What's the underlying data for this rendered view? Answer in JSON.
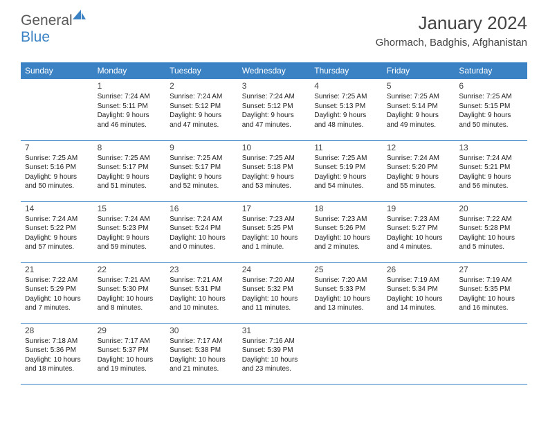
{
  "brand": {
    "part1": "General",
    "part2": "Blue"
  },
  "title": "January 2024",
  "location": "Ghormach, Badghis, Afghanistan",
  "colors": {
    "header_bg": "#3b82c4",
    "header_text": "#ffffff",
    "border": "#3b82c4",
    "text": "#222222",
    "title_text": "#444444",
    "logo_gray": "#5a5a5a",
    "logo_blue": "#3b82c4",
    "background": "#ffffff"
  },
  "typography": {
    "title_fontsize": 26,
    "location_fontsize": 15,
    "dayheader_fontsize": 12,
    "daynum_fontsize": 12,
    "info_fontsize": 10,
    "logo_fontsize": 21
  },
  "day_headers": [
    "Sunday",
    "Monday",
    "Tuesday",
    "Wednesday",
    "Thursday",
    "Friday",
    "Saturday"
  ],
  "weeks": [
    [
      null,
      {
        "n": "1",
        "sr": "Sunrise: 7:24 AM",
        "ss": "Sunset: 5:11 PM",
        "dl": "Daylight: 9 hours and 46 minutes."
      },
      {
        "n": "2",
        "sr": "Sunrise: 7:24 AM",
        "ss": "Sunset: 5:12 PM",
        "dl": "Daylight: 9 hours and 47 minutes."
      },
      {
        "n": "3",
        "sr": "Sunrise: 7:24 AM",
        "ss": "Sunset: 5:12 PM",
        "dl": "Daylight: 9 hours and 47 minutes."
      },
      {
        "n": "4",
        "sr": "Sunrise: 7:25 AM",
        "ss": "Sunset: 5:13 PM",
        "dl": "Daylight: 9 hours and 48 minutes."
      },
      {
        "n": "5",
        "sr": "Sunrise: 7:25 AM",
        "ss": "Sunset: 5:14 PM",
        "dl": "Daylight: 9 hours and 49 minutes."
      },
      {
        "n": "6",
        "sr": "Sunrise: 7:25 AM",
        "ss": "Sunset: 5:15 PM",
        "dl": "Daylight: 9 hours and 50 minutes."
      }
    ],
    [
      {
        "n": "7",
        "sr": "Sunrise: 7:25 AM",
        "ss": "Sunset: 5:16 PM",
        "dl": "Daylight: 9 hours and 50 minutes."
      },
      {
        "n": "8",
        "sr": "Sunrise: 7:25 AM",
        "ss": "Sunset: 5:17 PM",
        "dl": "Daylight: 9 hours and 51 minutes."
      },
      {
        "n": "9",
        "sr": "Sunrise: 7:25 AM",
        "ss": "Sunset: 5:17 PM",
        "dl": "Daylight: 9 hours and 52 minutes."
      },
      {
        "n": "10",
        "sr": "Sunrise: 7:25 AM",
        "ss": "Sunset: 5:18 PM",
        "dl": "Daylight: 9 hours and 53 minutes."
      },
      {
        "n": "11",
        "sr": "Sunrise: 7:25 AM",
        "ss": "Sunset: 5:19 PM",
        "dl": "Daylight: 9 hours and 54 minutes."
      },
      {
        "n": "12",
        "sr": "Sunrise: 7:24 AM",
        "ss": "Sunset: 5:20 PM",
        "dl": "Daylight: 9 hours and 55 minutes."
      },
      {
        "n": "13",
        "sr": "Sunrise: 7:24 AM",
        "ss": "Sunset: 5:21 PM",
        "dl": "Daylight: 9 hours and 56 minutes."
      }
    ],
    [
      {
        "n": "14",
        "sr": "Sunrise: 7:24 AM",
        "ss": "Sunset: 5:22 PM",
        "dl": "Daylight: 9 hours and 57 minutes."
      },
      {
        "n": "15",
        "sr": "Sunrise: 7:24 AM",
        "ss": "Sunset: 5:23 PM",
        "dl": "Daylight: 9 hours and 59 minutes."
      },
      {
        "n": "16",
        "sr": "Sunrise: 7:24 AM",
        "ss": "Sunset: 5:24 PM",
        "dl": "Daylight: 10 hours and 0 minutes."
      },
      {
        "n": "17",
        "sr": "Sunrise: 7:23 AM",
        "ss": "Sunset: 5:25 PM",
        "dl": "Daylight: 10 hours and 1 minute."
      },
      {
        "n": "18",
        "sr": "Sunrise: 7:23 AM",
        "ss": "Sunset: 5:26 PM",
        "dl": "Daylight: 10 hours and 2 minutes."
      },
      {
        "n": "19",
        "sr": "Sunrise: 7:23 AM",
        "ss": "Sunset: 5:27 PM",
        "dl": "Daylight: 10 hours and 4 minutes."
      },
      {
        "n": "20",
        "sr": "Sunrise: 7:22 AM",
        "ss": "Sunset: 5:28 PM",
        "dl": "Daylight: 10 hours and 5 minutes."
      }
    ],
    [
      {
        "n": "21",
        "sr": "Sunrise: 7:22 AM",
        "ss": "Sunset: 5:29 PM",
        "dl": "Daylight: 10 hours and 7 minutes."
      },
      {
        "n": "22",
        "sr": "Sunrise: 7:21 AM",
        "ss": "Sunset: 5:30 PM",
        "dl": "Daylight: 10 hours and 8 minutes."
      },
      {
        "n": "23",
        "sr": "Sunrise: 7:21 AM",
        "ss": "Sunset: 5:31 PM",
        "dl": "Daylight: 10 hours and 10 minutes."
      },
      {
        "n": "24",
        "sr": "Sunrise: 7:20 AM",
        "ss": "Sunset: 5:32 PM",
        "dl": "Daylight: 10 hours and 11 minutes."
      },
      {
        "n": "25",
        "sr": "Sunrise: 7:20 AM",
        "ss": "Sunset: 5:33 PM",
        "dl": "Daylight: 10 hours and 13 minutes."
      },
      {
        "n": "26",
        "sr": "Sunrise: 7:19 AM",
        "ss": "Sunset: 5:34 PM",
        "dl": "Daylight: 10 hours and 14 minutes."
      },
      {
        "n": "27",
        "sr": "Sunrise: 7:19 AM",
        "ss": "Sunset: 5:35 PM",
        "dl": "Daylight: 10 hours and 16 minutes."
      }
    ],
    [
      {
        "n": "28",
        "sr": "Sunrise: 7:18 AM",
        "ss": "Sunset: 5:36 PM",
        "dl": "Daylight: 10 hours and 18 minutes."
      },
      {
        "n": "29",
        "sr": "Sunrise: 7:17 AM",
        "ss": "Sunset: 5:37 PM",
        "dl": "Daylight: 10 hours and 19 minutes."
      },
      {
        "n": "30",
        "sr": "Sunrise: 7:17 AM",
        "ss": "Sunset: 5:38 PM",
        "dl": "Daylight: 10 hours and 21 minutes."
      },
      {
        "n": "31",
        "sr": "Sunrise: 7:16 AM",
        "ss": "Sunset: 5:39 PM",
        "dl": "Daylight: 10 hours and 23 minutes."
      },
      null,
      null,
      null
    ]
  ]
}
